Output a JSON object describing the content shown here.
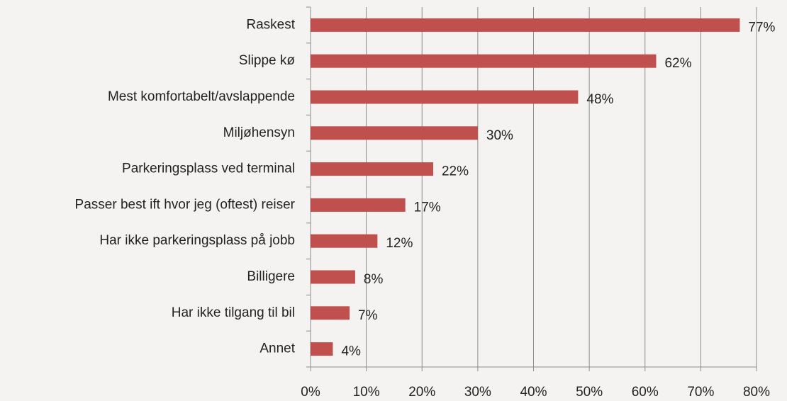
{
  "chart_data": {
    "type": "bar",
    "orientation": "horizontal",
    "categories": [
      "Raskest",
      "Slippe kø",
      "Mest komfortabelt/avslappende",
      "Miljøhensyn",
      "Parkeringsplass ved terminal",
      "Passer best ift hvor jeg (oftest) reiser",
      "Har ikke parkeringsplass på jobb",
      "Billigere",
      "Har ikke tilgang til bil",
      "Annet"
    ],
    "values": [
      77,
      62,
      48,
      30,
      22,
      17,
      12,
      8,
      7,
      4
    ],
    "value_labels": [
      "77%",
      "62%",
      "48%",
      "30%",
      "22%",
      "17%",
      "12%",
      "8%",
      "7%",
      "4%"
    ],
    "color": "#c0504d",
    "xlim": [
      0,
      80
    ],
    "xticks": [
      {
        "value": 0,
        "label": "0%"
      },
      {
        "value": 10,
        "label": "10%"
      },
      {
        "value": 20,
        "label": "20%"
      },
      {
        "value": 30,
        "label": "30%"
      },
      {
        "value": 40,
        "label": "40%"
      },
      {
        "value": 50,
        "label": "50%"
      },
      {
        "value": 60,
        "label": "60%"
      },
      {
        "value": 70,
        "label": "70%"
      },
      {
        "value": 80,
        "label": "80%"
      }
    ],
    "grid": true
  }
}
